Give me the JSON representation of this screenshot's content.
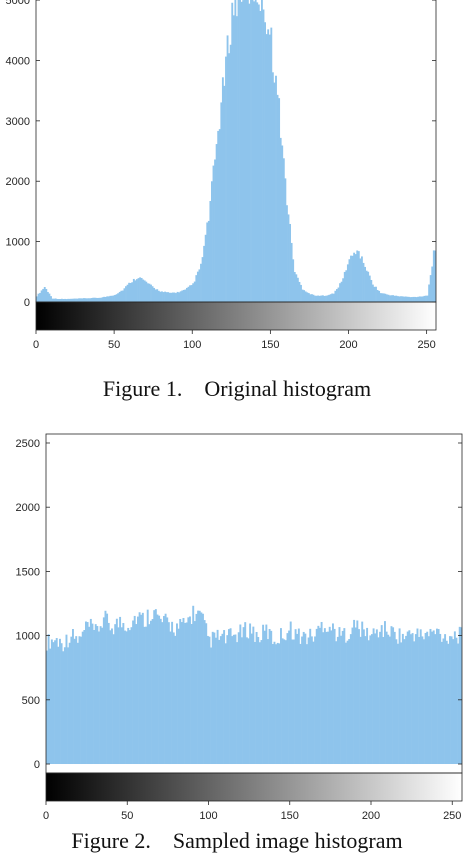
{
  "chart_data": [
    {
      "type": "bar",
      "ylim": [
        0,
        5200
      ],
      "xlim": [
        0,
        255
      ],
      "yticks": [
        0,
        1000,
        2000,
        3000,
        4000,
        5000
      ],
      "xticks": [
        0,
        50,
        100,
        150,
        200,
        250
      ],
      "bar_color": "#8ec4ec",
      "gradient_colorbar": true,
      "caption": "Figure 1.    Original histogram",
      "description": "bell-shaped peak centred near 140 (clipped above 5000), smaller bumps near 65 and 205",
      "x": [
        0,
        5,
        10,
        15,
        20,
        25,
        30,
        35,
        40,
        45,
        50,
        55,
        60,
        65,
        70,
        75,
        80,
        85,
        90,
        95,
        100,
        105,
        110,
        115,
        120,
        125,
        130,
        135,
        140,
        145,
        150,
        155,
        160,
        165,
        170,
        175,
        180,
        185,
        190,
        195,
        200,
        205,
        210,
        215,
        220,
        225,
        230,
        235,
        240,
        245,
        250,
        254
      ],
      "values": [
        100,
        250,
        60,
        50,
        50,
        55,
        60,
        65,
        70,
        90,
        120,
        200,
        330,
        420,
        330,
        230,
        170,
        150,
        160,
        200,
        300,
        600,
        1400,
        2600,
        3700,
        4800,
        5200,
        5200,
        5200,
        5000,
        4300,
        3200,
        1700,
        500,
        220,
        130,
        100,
        110,
        140,
        330,
        700,
        870,
        600,
        300,
        150,
        120,
        100,
        90,
        80,
        90,
        110,
        800
      ]
    },
    {
      "type": "bar",
      "ylim": [
        -70,
        2570
      ],
      "xlim": [
        0,
        255
      ],
      "yticks": [
        0,
        500,
        1000,
        1500,
        2000,
        2500
      ],
      "xticks": [
        0,
        50,
        100,
        150,
        200,
        250
      ],
      "bar_color": "#8ec4ec",
      "gradient_colorbar": true,
      "caption": "Figure 2.    Sampled image histogram",
      "description": "roughly flat distribution around 950–1200",
      "x": [
        0,
        5,
        10,
        15,
        20,
        25,
        30,
        35,
        40,
        45,
        50,
        55,
        60,
        65,
        70,
        75,
        80,
        85,
        90,
        95,
        100,
        105,
        110,
        115,
        120,
        125,
        130,
        135,
        140,
        145,
        150,
        155,
        160,
        165,
        170,
        175,
        180,
        185,
        190,
        195,
        200,
        205,
        210,
        215,
        220,
        225,
        230,
        235,
        240,
        245,
        250,
        254
      ],
      "values": [
        950,
        970,
        940,
        1000,
        960,
        1080,
        1020,
        1130,
        1070,
        1100,
        1090,
        1150,
        1120,
        1200,
        1110,
        1090,
        1060,
        1080,
        1180,
        1140,
        960,
        990,
        980,
        1000,
        1020,
        1060,
        980,
        1040,
        960,
        1010,
        1050,
        1000,
        990,
        1000,
        1100,
        1060,
        1000,
        1020,
        1080,
        1030,
        1000,
        1050,
        1040,
        1010,
        990,
        1020,
        1000,
        1010,
        1030,
        990,
        1010,
        1000
      ]
    }
  ]
}
